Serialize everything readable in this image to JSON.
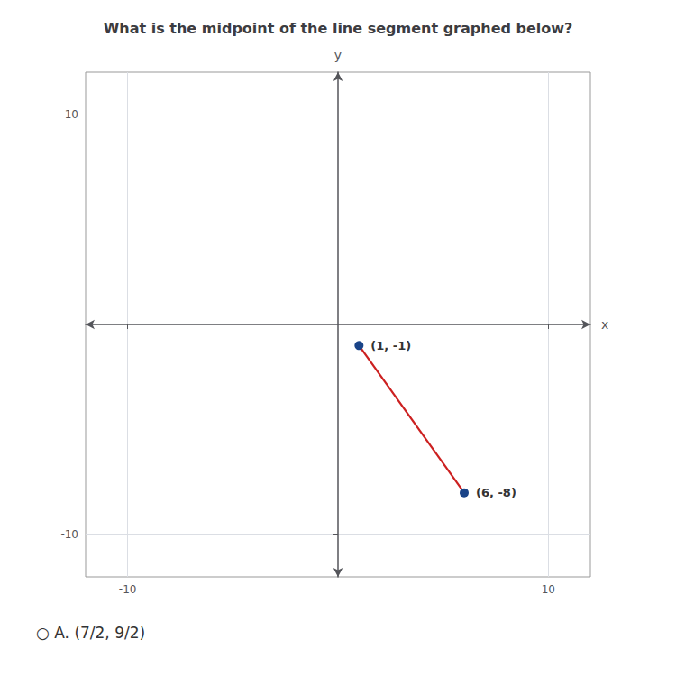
{
  "chart_data": {
    "type": "line",
    "title": "What is the midpoint of the line segment graphed below?",
    "x": [
      1,
      6
    ],
    "values": [
      -1,
      -8
    ],
    "value_labels": [
      "(1, -1)",
      "(6, -8)"
    ],
    "data_labels": true,
    "color": "#cc2020",
    "colors": [
      "#1a4488",
      "#1a4488"
    ],
    "xlim": [
      -12,
      12
    ],
    "ylim": [
      -12,
      12
    ],
    "xticks": [
      -10,
      10
    ],
    "yticks": [
      -10,
      10
    ],
    "grid": true,
    "xlabel": "x",
    "ylabel": "y",
    "annotations": [
      "○ A. (7/2, 9/2)"
    ]
  }
}
